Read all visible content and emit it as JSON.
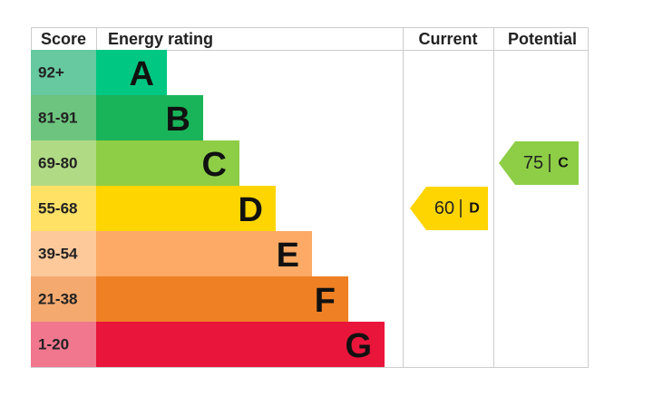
{
  "chart_data": {
    "type": "epc",
    "headers": {
      "score": "Score",
      "rating": "Energy rating",
      "current": "Current",
      "potential": "Potential"
    },
    "bands": [
      {
        "range": "92+",
        "letter": "A",
        "color": "#00c781",
        "score_color": "#66c9a0"
      },
      {
        "range": "81-91",
        "letter": "B",
        "color": "#19b459",
        "score_color": "#6cc47e"
      },
      {
        "range": "69-80",
        "letter": "C",
        "color": "#8dce46",
        "score_color": "#b1da85"
      },
      {
        "range": "55-68",
        "letter": "D",
        "color": "#ffd500",
        "score_color": "#ffe166"
      },
      {
        "range": "39-54",
        "letter": "E",
        "color": "#fcaa65",
        "score_color": "#fdc99b"
      },
      {
        "range": "21-38",
        "letter": "F",
        "color": "#ef8023",
        "score_color": "#f4a96f"
      },
      {
        "range": "1-20",
        "letter": "G",
        "color": "#e9153b",
        "score_color": "#f0778e"
      }
    ],
    "current": {
      "value": 60,
      "rating": "D"
    },
    "potential": {
      "value": 75,
      "rating": "C"
    }
  }
}
